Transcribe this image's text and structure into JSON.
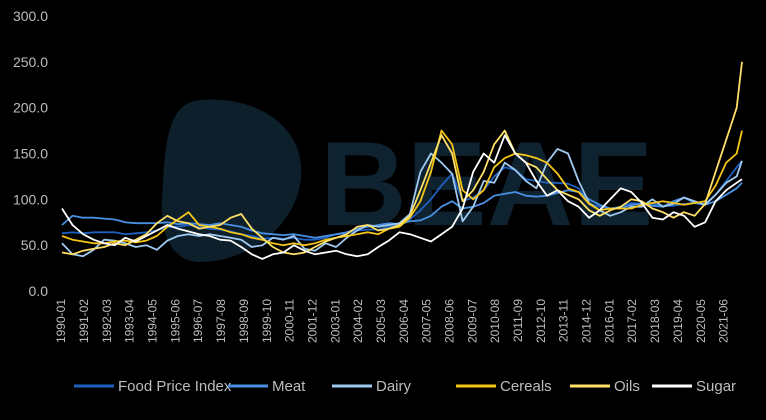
{
  "chart_data": {
    "type": "line",
    "watermark": "BEAE",
    "ylim": [
      0,
      300
    ],
    "yticks": [
      "0.0",
      "50.0",
      "100.0",
      "150.0",
      "200.0",
      "250.0",
      "300.0"
    ],
    "xticks": [
      "1990-01",
      "1991-02",
      "1992-03",
      "1993-04",
      "1994-05",
      "1995-06",
      "1996-07",
      "1997-08",
      "1998-09",
      "1999-10",
      "2000-11",
      "2001-12",
      "2003-01",
      "2004-02",
      "2005-03",
      "2006-04",
      "2007-05",
      "2008-06",
      "2009-07",
      "2010-08",
      "2011-09",
      "2012-10",
      "2013-11",
      "2014-12",
      "2016-01",
      "2017-02",
      "2018-03",
      "2019-04",
      "2020-05",
      "2021-06"
    ],
    "x": [
      1990.0,
      1990.5,
      1991.0,
      1991.5,
      1992.0,
      1992.5,
      1993.0,
      1993.5,
      1994.0,
      1994.5,
      1995.0,
      1995.5,
      1996.0,
      1996.5,
      1997.0,
      1997.5,
      1998.0,
      1998.5,
      1999.0,
      1999.5,
      2000.0,
      2000.5,
      2001.0,
      2001.5,
      2002.0,
      2002.5,
      2003.0,
      2003.5,
      2004.0,
      2004.5,
      2005.0,
      2005.5,
      2006.0,
      2006.5,
      2007.0,
      2007.5,
      2008.0,
      2008.5,
      2009.0,
      2009.5,
      2010.0,
      2010.5,
      2011.0,
      2011.5,
      2012.0,
      2012.5,
      2013.0,
      2013.5,
      2014.0,
      2014.5,
      2015.0,
      2015.5,
      2016.0,
      2016.5,
      2017.0,
      2017.5,
      2018.0,
      2018.5,
      2019.0,
      2019.5,
      2020.0,
      2020.5,
      2021.0,
      2021.5,
      2022.0,
      2022.25
    ],
    "series": [
      {
        "name": "Food Price Index",
        "color": "#1f5fbf",
        "values": [
          63,
          64,
          63,
          64,
          64,
          64,
          62,
          63,
          64,
          66,
          70,
          70,
          72,
          70,
          68,
          67,
          65,
          62,
          60,
          57,
          58,
          57,
          58,
          56,
          56,
          58,
          62,
          63,
          66,
          67,
          67,
          70,
          72,
          78,
          88,
          100,
          115,
          128,
          98,
          102,
          110,
          125,
          135,
          132,
          122,
          120,
          118,
          118,
          117,
          112,
          95,
          92,
          90,
          92,
          96,
          95,
          95,
          93,
          93,
          95,
          96,
          95,
          105,
          120,
          135,
          142
        ]
      },
      {
        "name": "Meat",
        "color": "#4a90e2",
        "values": [
          72,
          82,
          80,
          80,
          79,
          78,
          75,
          74,
          74,
          74,
          75,
          73,
          74,
          73,
          72,
          74,
          72,
          70,
          66,
          63,
          62,
          61,
          62,
          60,
          58,
          60,
          62,
          64,
          68,
          70,
          72,
          74,
          73,
          76,
          77,
          82,
          92,
          98,
          90,
          92,
          96,
          104,
          106,
          108,
          104,
          103,
          104,
          107,
          110,
          108,
          100,
          94,
          90,
          90,
          94,
          95,
          93,
          92,
          98,
          102,
          96,
          94,
          98,
          105,
          112,
          118
        ]
      },
      {
        "name": "Dairy",
        "color": "#9fc9f0",
        "values": [
          52,
          40,
          38,
          45,
          56,
          55,
          52,
          48,
          50,
          45,
          55,
          60,
          62,
          60,
          62,
          60,
          58,
          56,
          48,
          50,
          58,
          56,
          60,
          46,
          44,
          52,
          48,
          58,
          66,
          72,
          70,
          72,
          74,
          84,
          130,
          150,
          140,
          128,
          76,
          92,
          120,
          118,
          140,
          132,
          120,
          112,
          140,
          155,
          150,
          120,
          96,
          88,
          82,
          86,
          92,
          92,
          100,
          92,
          95,
          102,
          98,
          94,
          105,
          118,
          125,
          142
        ]
      },
      {
        "name": "Cereals",
        "color": "#f5c518",
        "values": [
          60,
          56,
          54,
          52,
          52,
          54,
          55,
          53,
          55,
          60,
          70,
          78,
          86,
          72,
          70,
          68,
          64,
          62,
          58,
          56,
          52,
          50,
          52,
          50,
          52,
          56,
          58,
          60,
          62,
          64,
          62,
          68,
          70,
          80,
          98,
          130,
          175,
          160,
          110,
          100,
          110,
          135,
          145,
          150,
          148,
          145,
          140,
          128,
          112,
          108,
          95,
          88,
          90,
          90,
          90,
          94,
          96,
          98,
          96,
          94,
          96,
          98,
          115,
          140,
          150,
          175
        ]
      },
      {
        "name": "Oils",
        "color": "#ffe066",
        "values": [
          42,
          40,
          44,
          46,
          48,
          52,
          50,
          56,
          62,
          74,
          82,
          76,
          74,
          68,
          70,
          72,
          80,
          84,
          68,
          58,
          48,
          42,
          40,
          42,
          48,
          54,
          58,
          62,
          70,
          72,
          66,
          68,
          72,
          82,
          110,
          140,
          170,
          150,
          98,
          110,
          130,
          160,
          175,
          150,
          140,
          135,
          122,
          110,
          105,
          100,
          88,
          82,
          88,
          92,
          100,
          98,
          90,
          86,
          80,
          86,
          82,
          95,
          130,
          165,
          200,
          250
        ]
      },
      {
        "name": "Sugar",
        "color": "#ffffff",
        "values": [
          90,
          72,
          62,
          56,
          52,
          50,
          58,
          54,
          60,
          66,
          72,
          68,
          65,
          62,
          60,
          56,
          55,
          48,
          40,
          35,
          40,
          42,
          50,
          44,
          40,
          42,
          44,
          40,
          38,
          40,
          48,
          55,
          64,
          62,
          58,
          54,
          62,
          70,
          90,
          130,
          150,
          140,
          170,
          150,
          140,
          120,
          104,
          110,
          98,
          92,
          80,
          88,
          100,
          112,
          108,
          96,
          80,
          78,
          86,
          82,
          70,
          75,
          98,
          110,
          118,
          122
        ]
      }
    ]
  }
}
